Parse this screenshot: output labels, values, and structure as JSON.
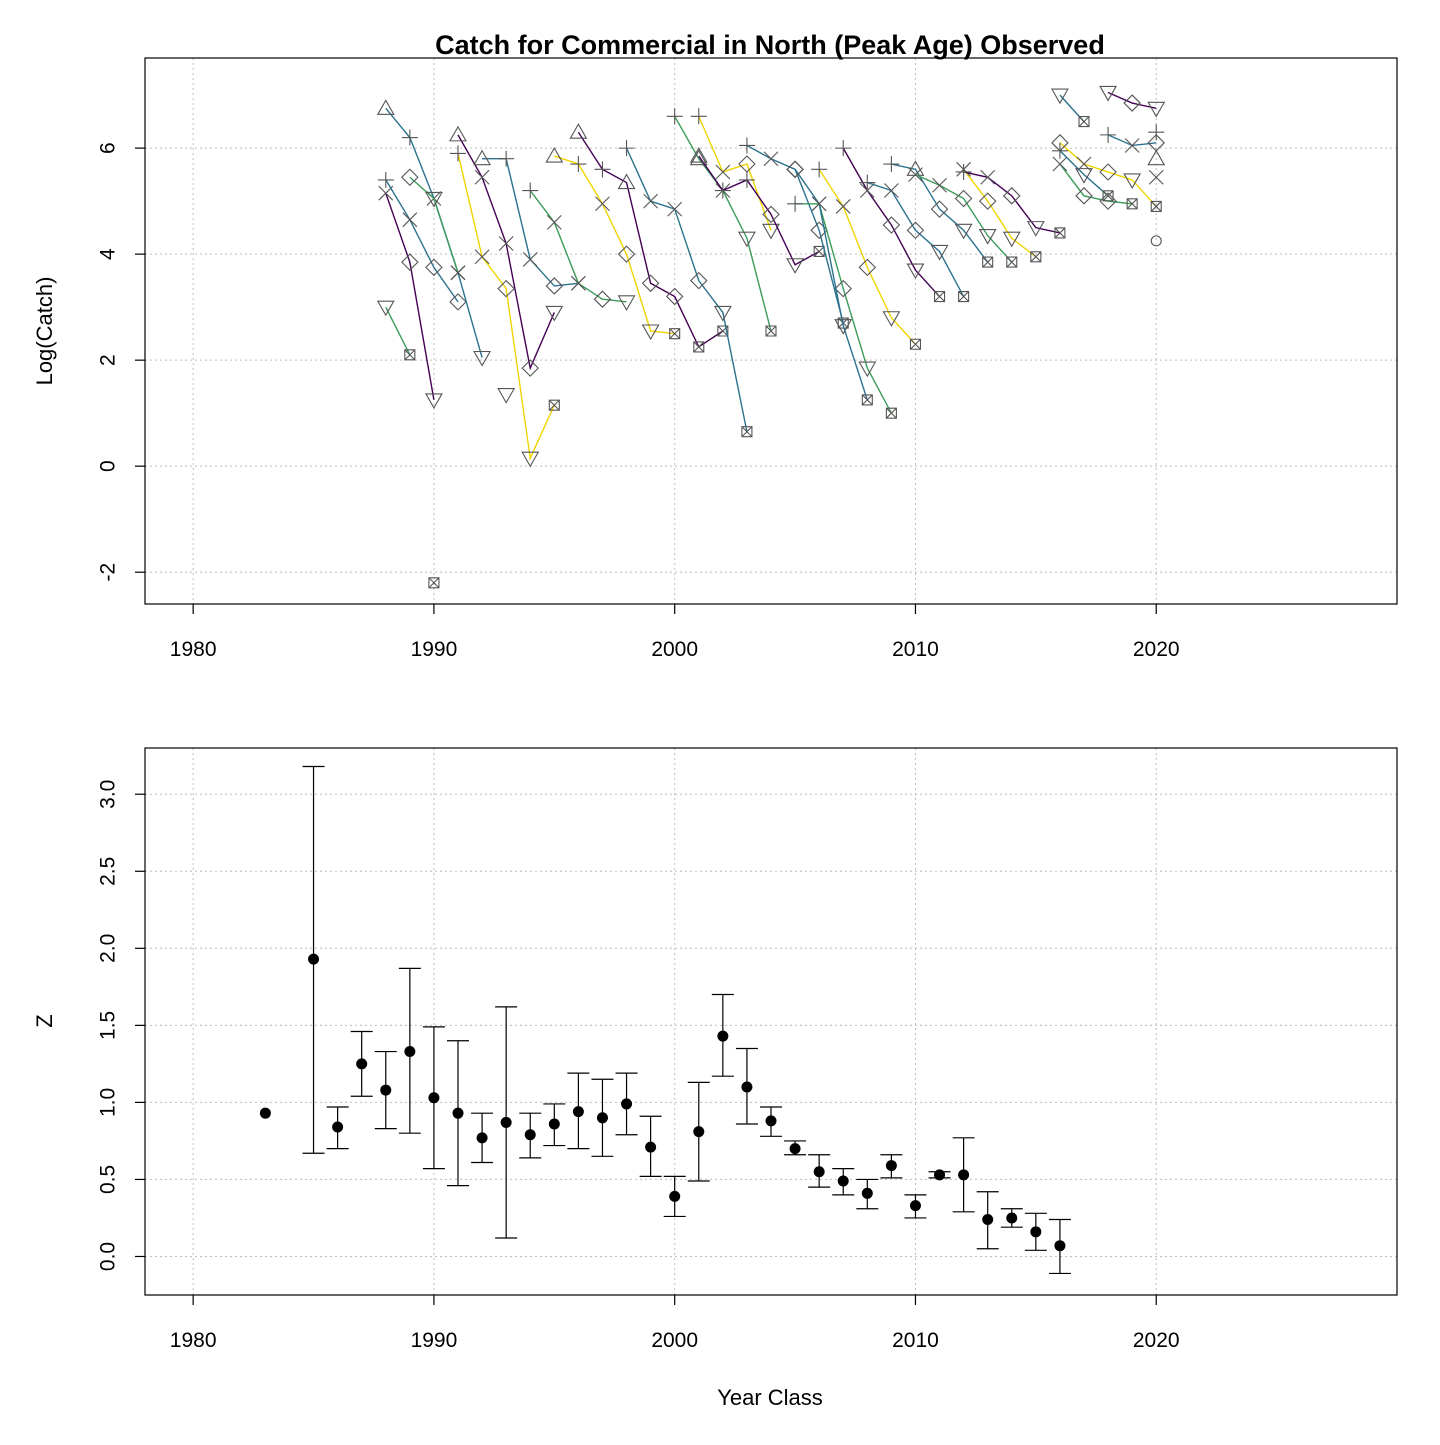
{
  "chart_data": [
    {
      "type": "line",
      "title": "Catch for Commercial in North (Peak Age) Observed",
      "xlabel": "",
      "ylabel": "Log(Catch)",
      "xlim": [
        1978,
        2030
      ],
      "ylim": [
        -2.6,
        7.7
      ],
      "xticks": [
        1980,
        1990,
        2000,
        2010,
        2020
      ],
      "yticks": [
        -2,
        0,
        2,
        4,
        6
      ],
      "grid": true,
      "colors": [
        "#440154",
        "#2c728e",
        "#3b9c5a",
        "#f0d400"
      ],
      "symbols": [
        "plus",
        "cross",
        "diamond",
        "triangle-down",
        "boxx",
        "triangle-up",
        "circle"
      ],
      "series": [
        {
          "color": "#440154",
          "x": [
            1988,
            1989,
            1990
          ],
          "y": [
            5.15,
            3.85,
            1.25
          ],
          "markers": [
            "cross",
            "diamond",
            "triangle-down"
          ]
        },
        {
          "color": "#2c728e",
          "x": [
            1988,
            1989,
            1990,
            1991
          ],
          "y": [
            5.4,
            4.65,
            3.75,
            3.1
          ],
          "markers": [
            "plus",
            "cross",
            "diamond",
            "diamond"
          ]
        },
        {
          "color": "#2c728e",
          "x": [
            1988,
            1989,
            1990,
            1991,
            1992
          ],
          "y": [
            6.75,
            6.2,
            5.05,
            3.65,
            2.05
          ],
          "markers": [
            "triangle-up",
            "plus",
            "cross",
            "cross",
            "triangle-down"
          ]
        },
        {
          "color": "#3b9c5a",
          "x": [
            1988,
            1989
          ],
          "y": [
            3.0,
            2.1
          ],
          "markers": [
            "triangle-down",
            "boxx"
          ]
        },
        {
          "color": "#3b9c5a",
          "x": [
            1989,
            1990,
            1991
          ],
          "y": [
            5.45,
            5.05,
            3.65
          ],
          "markers": [
            "diamond",
            "triangle-down",
            "cross"
          ]
        },
        {
          "color": "#440154",
          "x": [
            1991,
            1992,
            1993,
            1994,
            1995
          ],
          "y": [
            6.25,
            5.45,
            4.2,
            1.85,
            2.9
          ],
          "markers": [
            "triangle-up",
            "cross",
            "cross",
            "diamond",
            "triangle-down"
          ]
        },
        {
          "color": "#f0d400",
          "x": [
            1991,
            1992,
            1993,
            1994,
            1995
          ],
          "y": [
            5.9,
            3.95,
            3.35,
            0.15,
            1.15
          ],
          "markers": [
            "plus",
            "cross",
            "diamond",
            "triangle-down",
            "boxx"
          ]
        },
        {
          "color": "#2c728e",
          "x": [
            1992,
            1993,
            1994,
            1995,
            1996
          ],
          "y": [
            5.8,
            5.8,
            3.9,
            3.4,
            3.45
          ],
          "markers": [
            "triangle-up",
            "plus",
            "cross",
            "diamond",
            "cross"
          ]
        },
        {
          "color": "#3b9c5a",
          "x": [
            1994,
            1995,
            1996,
            1997,
            1998
          ],
          "y": [
            5.2,
            4.6,
            3.45,
            3.15,
            3.1
          ],
          "markers": [
            "plus",
            "cross",
            "cross",
            "diamond",
            "triangle-down"
          ]
        },
        {
          "color": "#f0d400",
          "x": [
            1995,
            1996,
            1997,
            1998,
            1999,
            2000
          ],
          "y": [
            5.85,
            5.7,
            4.95,
            4.0,
            2.55,
            2.5
          ],
          "markers": [
            "triangle-up",
            "plus",
            "cross",
            "diamond",
            "triangle-down",
            "boxx"
          ]
        },
        {
          "color": "#440154",
          "x": [
            1996,
            1997,
            1998,
            1999,
            2000,
            2001,
            2002
          ],
          "y": [
            6.3,
            5.6,
            5.35,
            3.45,
            3.2,
            2.25,
            2.55
          ],
          "markers": [
            "triangle-up",
            "plus",
            "triangle-up",
            "diamond",
            "diamond",
            "boxx",
            "boxx"
          ]
        },
        {
          "color": "#2c728e",
          "x": [
            1998,
            1999,
            2000,
            2001,
            2002,
            2003
          ],
          "y": [
            6.0,
            5.0,
            4.85,
            3.5,
            2.9,
            0.65
          ],
          "markers": [
            "plus",
            "cross",
            "cross",
            "diamond",
            "triangle-down",
            "boxx"
          ]
        },
        {
          "color": "#3b9c5a",
          "x": [
            2000,
            2001,
            2002,
            2003,
            2004
          ],
          "y": [
            6.6,
            5.8,
            5.2,
            4.3,
            2.55
          ],
          "markers": [
            "plus",
            "triangle-up",
            "cross",
            "triangle-down",
            "boxx"
          ]
        },
        {
          "color": "#f0d400",
          "x": [
            2001,
            2002,
            2003,
            2004
          ],
          "y": [
            6.6,
            5.55,
            5.7,
            4.45
          ],
          "markers": [
            "plus",
            "cross",
            "diamond",
            "triangle-down"
          ]
        },
        {
          "color": "#440154",
          "x": [
            2001,
            2002,
            2003,
            2004,
            2005,
            2006
          ],
          "y": [
            5.85,
            5.2,
            5.4,
            4.75,
            3.8,
            4.05
          ],
          "markers": [
            "triangle-up",
            "plus",
            "plus",
            "diamond",
            "triangle-down",
            "boxx"
          ]
        },
        {
          "color": "#2c728e",
          "x": [
            2003,
            2004,
            2005,
            2006,
            2007
          ],
          "y": [
            6.05,
            5.8,
            5.6,
            4.45,
            2.7
          ],
          "markers": [
            "plus",
            "cross",
            "diamond",
            "diamond",
            "boxx"
          ]
        },
        {
          "color": "#3b9c5a",
          "x": [
            2005,
            2006,
            2007,
            2008,
            2009
          ],
          "y": [
            4.95,
            4.95,
            3.35,
            1.85,
            1.0
          ],
          "markers": [
            "plus",
            "cross",
            "diamond",
            "triangle-down",
            "boxx"
          ]
        },
        {
          "color": "#2c728e",
          "x": [
            2005,
            2006,
            2007,
            2008
          ],
          "y": [
            5.6,
            4.95,
            2.65,
            1.25
          ],
          "markers": [
            "diamond",
            "cross",
            "triangle-down",
            "boxx"
          ]
        },
        {
          "color": "#f0d400",
          "x": [
            2006,
            2007,
            2008,
            2009,
            2010
          ],
          "y": [
            5.6,
            4.9,
            3.75,
            2.8,
            2.3
          ],
          "markers": [
            "plus",
            "cross",
            "diamond",
            "triangle-down",
            "boxx"
          ]
        },
        {
          "color": "#440154",
          "x": [
            2007,
            2008,
            2009,
            2010,
            2011
          ],
          "y": [
            6.0,
            5.2,
            4.55,
            3.7,
            3.2
          ],
          "markers": [
            "plus",
            "cross",
            "diamond",
            "triangle-down",
            "boxx"
          ]
        },
        {
          "color": "#2c728e",
          "x": [
            2008,
            2009,
            2010,
            2011,
            2012
          ],
          "y": [
            5.35,
            5.2,
            4.45,
            4.05,
            3.2
          ],
          "markers": [
            "plus",
            "cross",
            "diamond",
            "triangle-down",
            "boxx"
          ]
        },
        {
          "color": "#2c728e",
          "x": [
            2009,
            2010,
            2011,
            2012,
            2013
          ],
          "y": [
            5.7,
            5.6,
            4.85,
            4.45,
            3.85
          ],
          "markers": [
            "plus",
            "triangle-up",
            "diamond",
            "triangle-down",
            "boxx"
          ]
        },
        {
          "color": "#3b9c5a",
          "x": [
            2010,
            2011,
            2012,
            2013,
            2014
          ],
          "y": [
            5.5,
            5.3,
            5.05,
            4.35,
            3.85
          ],
          "markers": [
            "cross",
            "cross",
            "diamond",
            "triangle-down",
            "boxx"
          ]
        },
        {
          "color": "#f0d400",
          "x": [
            2012,
            2013,
            2014,
            2015
          ],
          "y": [
            5.6,
            5.0,
            4.3,
            3.95
          ],
          "markers": [
            "cross",
            "diamond",
            "triangle-down",
            "boxx"
          ]
        },
        {
          "color": "#440154",
          "x": [
            2012,
            2013,
            2014,
            2015,
            2016
          ],
          "y": [
            5.55,
            5.45,
            5.1,
            4.5,
            4.4
          ],
          "markers": [
            "plus",
            "cross",
            "diamond",
            "triangle-down",
            "boxx"
          ]
        },
        {
          "color": "#2c728e",
          "x": [
            2016,
            2017
          ],
          "y": [
            7.0,
            6.5
          ],
          "markers": [
            "triangle-down",
            "boxx"
          ]
        },
        {
          "color": "#3b9c5a",
          "x": [
            2016,
            2017,
            2018,
            2019
          ],
          "y": [
            5.7,
            5.1,
            5.0,
            4.95
          ],
          "markers": [
            "cross",
            "diamond",
            "diamond",
            "boxx"
          ]
        },
        {
          "color": "#f0d400",
          "x": [
            2016,
            2017,
            2018,
            2019,
            2020
          ],
          "y": [
            6.1,
            5.7,
            5.55,
            5.4,
            4.9
          ],
          "markers": [
            "diamond",
            "cross",
            "diamond",
            "triangle-down",
            "boxx"
          ]
        },
        {
          "color": "#2c728e",
          "x": [
            2016,
            2017,
            2018
          ],
          "y": [
            5.95,
            5.5,
            5.1
          ],
          "markers": [
            "plus",
            "triangle-down",
            "boxx"
          ]
        },
        {
          "color": "#2c728e",
          "x": [
            2018,
            2019,
            2020
          ],
          "y": [
            6.25,
            6.05,
            6.1
          ],
          "markers": [
            "plus",
            "cross",
            "diamond"
          ]
        },
        {
          "color": "#440154",
          "x": [
            2018,
            2019,
            2020
          ],
          "y": [
            7.05,
            6.85,
            6.75
          ],
          "markers": [
            "triangle-down",
            "diamond",
            "triangle-down"
          ]
        },
        {
          "color": "#440154",
          "x": [
            2020
          ],
          "y": [
            6.3
          ],
          "markers": [
            "plus"
          ]
        },
        {
          "color": "#3b9c5a",
          "x": [
            2020
          ],
          "y": [
            5.8
          ],
          "markers": [
            "triangle-up"
          ]
        },
        {
          "color": "#2c728e",
          "x": [
            2020
          ],
          "y": [
            5.45
          ],
          "markers": [
            "cross"
          ]
        },
        {
          "color": "#440154",
          "x": [
            2020
          ],
          "y": [
            4.25
          ],
          "markers": [
            "circle"
          ]
        },
        {
          "color": "#2c728e",
          "x": [
            1993
          ],
          "y": [
            1.35
          ],
          "markers": [
            "triangle-down"
          ]
        },
        {
          "color": "#440154",
          "x": [
            1990
          ],
          "y": [
            -2.2
          ],
          "markers": [
            "boxx"
          ]
        }
      ]
    },
    {
      "type": "scatter",
      "title": "",
      "xlabel": "Year Class",
      "ylabel": "Z",
      "xlim": [
        1978,
        2030
      ],
      "ylim": [
        -0.25,
        3.3
      ],
      "xticks": [
        1980,
        1990,
        2000,
        2010,
        2020
      ],
      "yticks": [
        "0.0",
        "0.5",
        "1.0",
        "1.5",
        "2.0",
        "2.5",
        "3.0"
      ],
      "grid": true,
      "points": [
        {
          "x": 1983,
          "y": 0.93
        },
        {
          "x": 1985,
          "y": 1.93,
          "lo": 0.67,
          "hi": 3.18
        },
        {
          "x": 1986,
          "y": 0.84,
          "lo": 0.7,
          "hi": 0.97
        },
        {
          "x": 1987,
          "y": 1.25,
          "lo": 1.04,
          "hi": 1.46
        },
        {
          "x": 1988,
          "y": 1.08,
          "lo": 0.83,
          "hi": 1.33
        },
        {
          "x": 1989,
          "y": 1.33,
          "lo": 0.8,
          "hi": 1.87
        },
        {
          "x": 1990,
          "y": 1.03,
          "lo": 0.57,
          "hi": 1.49
        },
        {
          "x": 1991,
          "y": 0.93,
          "lo": 0.46,
          "hi": 1.4
        },
        {
          "x": 1992,
          "y": 0.77,
          "lo": 0.61,
          "hi": 0.93
        },
        {
          "x": 1993,
          "y": 0.87,
          "lo": 0.12,
          "hi": 1.62
        },
        {
          "x": 1994,
          "y": 0.79,
          "lo": 0.64,
          "hi": 0.93
        },
        {
          "x": 1995,
          "y": 0.86,
          "lo": 0.72,
          "hi": 0.99
        },
        {
          "x": 1996,
          "y": 0.94,
          "lo": 0.7,
          "hi": 1.19
        },
        {
          "x": 1997,
          "y": 0.9,
          "lo": 0.65,
          "hi": 1.15
        },
        {
          "x": 1998,
          "y": 0.99,
          "lo": 0.79,
          "hi": 1.19
        },
        {
          "x": 1999,
          "y": 0.71,
          "lo": 0.52,
          "hi": 0.91
        },
        {
          "x": 2000,
          "y": 0.39,
          "lo": 0.26,
          "hi": 0.52
        },
        {
          "x": 2001,
          "y": 0.81,
          "lo": 0.49,
          "hi": 1.13
        },
        {
          "x": 2002,
          "y": 1.43,
          "lo": 1.17,
          "hi": 1.7
        },
        {
          "x": 2003,
          "y": 1.1,
          "lo": 0.86,
          "hi": 1.35
        },
        {
          "x": 2004,
          "y": 0.88,
          "lo": 0.78,
          "hi": 0.97
        },
        {
          "x": 2005,
          "y": 0.7,
          "lo": 0.66,
          "hi": 0.75
        },
        {
          "x": 2006,
          "y": 0.55,
          "lo": 0.45,
          "hi": 0.66
        },
        {
          "x": 2007,
          "y": 0.49,
          "lo": 0.4,
          "hi": 0.57
        },
        {
          "x": 2008,
          "y": 0.41,
          "lo": 0.31,
          "hi": 0.5
        },
        {
          "x": 2009,
          "y": 0.59,
          "lo": 0.51,
          "hi": 0.66
        },
        {
          "x": 2010,
          "y": 0.33,
          "lo": 0.25,
          "hi": 0.4
        },
        {
          "x": 2011,
          "y": 0.53,
          "lo": 0.51,
          "hi": 0.55
        },
        {
          "x": 2012,
          "y": 0.53,
          "lo": 0.29,
          "hi": 0.77
        },
        {
          "x": 2013,
          "y": 0.24,
          "lo": 0.05,
          "hi": 0.42
        },
        {
          "x": 2014,
          "y": 0.25,
          "lo": 0.19,
          "hi": 0.31
        },
        {
          "x": 2015,
          "y": 0.16,
          "lo": 0.04,
          "hi": 0.28
        },
        {
          "x": 2016,
          "y": 0.07,
          "lo": -0.11,
          "hi": 0.24
        }
      ]
    }
  ]
}
